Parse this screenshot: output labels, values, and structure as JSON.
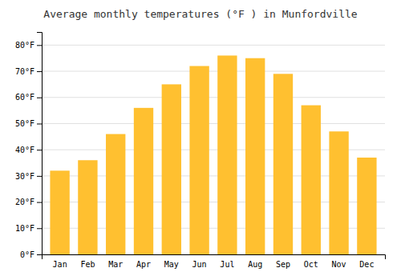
{
  "chart_data": {
    "type": "bar",
    "title": "Average monthly temperatures (°F ) in Munfordville",
    "categories": [
      "Jan",
      "Feb",
      "Mar",
      "Apr",
      "May",
      "Jun",
      "Jul",
      "Aug",
      "Sep",
      "Oct",
      "Nov",
      "Dec"
    ],
    "values": [
      32,
      36,
      46,
      56,
      65,
      72,
      76,
      75,
      69,
      57,
      47,
      37
    ],
    "color": "#FFC030",
    "ylim": [
      0,
      85
    ],
    "yticks": [
      {
        "value": 0,
        "label": "0°F"
      },
      {
        "value": 10,
        "label": "10°F"
      },
      {
        "value": 20,
        "label": "20°F"
      },
      {
        "value": 30,
        "label": "30°F"
      },
      {
        "value": 40,
        "label": "40°F"
      },
      {
        "value": 50,
        "label": "50°F"
      },
      {
        "value": 60,
        "label": "60°F"
      },
      {
        "value": 70,
        "label": "70°F"
      },
      {
        "value": 80,
        "label": "80°F"
      }
    ],
    "grid": true
  }
}
